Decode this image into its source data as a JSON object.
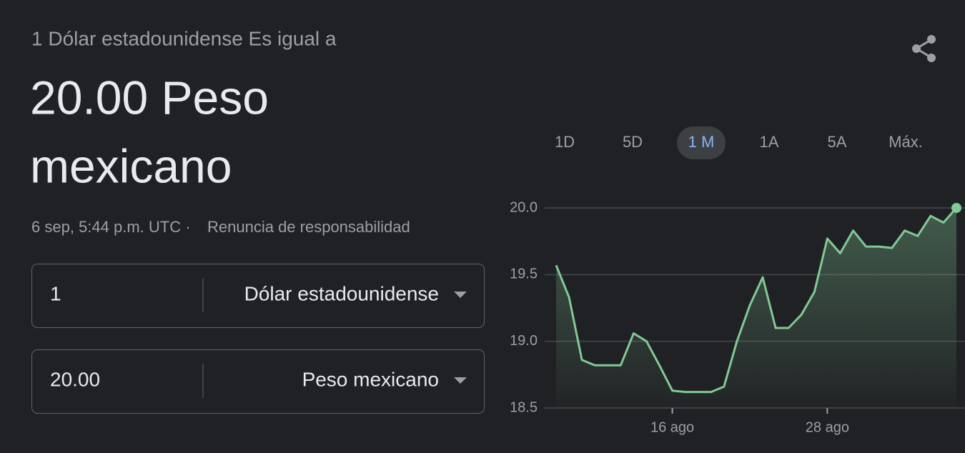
{
  "header": {
    "subtitle": "1 Dólar estadounidense Es igual a",
    "result_line1": "20.00 Peso",
    "result_line2": "mexicano",
    "timestamp": "6 sep, 5:44 p.m. UTC ·",
    "disclaimer": "Renuncia de responsabilidad"
  },
  "converter": {
    "from": {
      "amount": "1",
      "currency": "Dólar estadounidense"
    },
    "to": {
      "amount": "20.00",
      "currency": "Peso mexicano"
    }
  },
  "ranges": {
    "options": [
      "1D",
      "5D",
      "1 M",
      "1A",
      "5A",
      "Máx."
    ],
    "selected": "1 M"
  },
  "chart_data": {
    "type": "line",
    "color": "#81c995",
    "grid": true,
    "categories": [
      null,
      null,
      null,
      null,
      null,
      null,
      null,
      null,
      null,
      "16 ago",
      null,
      null,
      null,
      null,
      null,
      null,
      null,
      null,
      null,
      null,
      null,
      "28 ago",
      null,
      null,
      null,
      null,
      null,
      null,
      null,
      null,
      null,
      null
    ],
    "values": [
      19.57,
      19.33,
      18.86,
      18.82,
      18.82,
      18.82,
      19.06,
      19.0,
      18.82,
      18.63,
      18.62,
      18.62,
      18.62,
      18.66,
      19.0,
      19.27,
      19.48,
      19.1,
      19.1,
      19.2,
      19.37,
      19.77,
      19.66,
      19.83,
      19.71,
      19.71,
      19.7,
      19.83,
      19.79,
      19.94,
      19.89,
      20.0
    ],
    "ylim": [
      18.5,
      20.0
    ],
    "yticks": [
      18.5,
      {
        "value": 19,
        "label": "19.0"
      },
      19.5,
      {
        "value": 20,
        "label": "20.0"
      }
    ]
  }
}
